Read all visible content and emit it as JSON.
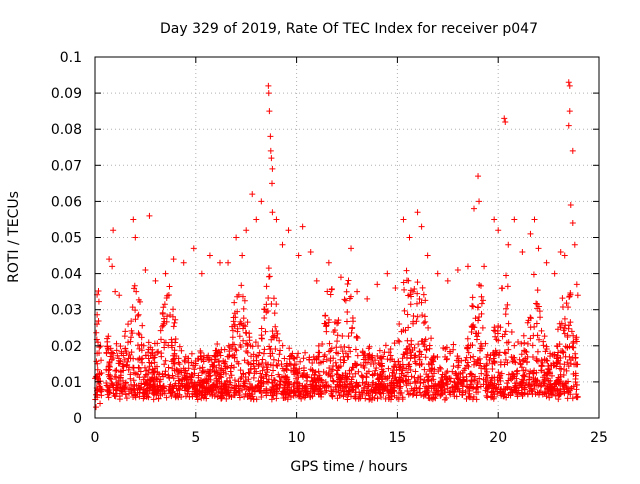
{
  "chart_data": {
    "type": "scatter",
    "title": "Day 329 of 2019, Rate Of TEC Index for receiver p047",
    "xlabel": "GPS time / hours",
    "ylabel": "ROTI / TECUs",
    "xlim": [
      0,
      25
    ],
    "ylim": [
      0,
      0.1
    ],
    "x_ticks": [
      0,
      5,
      10,
      15,
      20,
      25
    ],
    "y_ticks": [
      0,
      0.01,
      0.02,
      0.03,
      0.04,
      0.05,
      0.06,
      0.07,
      0.08,
      0.09,
      0.1
    ],
    "x_tick_labels": [
      "0",
      "5",
      "10",
      "15",
      "20",
      "25"
    ],
    "y_tick_labels": [
      "0",
      "0.01",
      "0.02",
      "0.03",
      "0.04",
      "0.05",
      "0.06",
      "0.07",
      "0.08",
      "0.09",
      "0.1"
    ],
    "grid": true,
    "marker": "+",
    "color": "#ff0000",
    "series": [
      {
        "name": "ROTI",
        "points": [
          [
            0.05,
            0.003
          ],
          [
            0.1,
            0.026
          ],
          [
            0.15,
            0.021
          ],
          [
            0.2,
            0.018
          ],
          [
            0.25,
            0.004
          ],
          [
            0.3,
            0.016
          ],
          [
            0.6,
            0.022
          ],
          [
            0.7,
            0.044
          ],
          [
            0.85,
            0.042
          ],
          [
            0.9,
            0.052
          ],
          [
            1.0,
            0.035
          ],
          [
            1.2,
            0.034
          ],
          [
            1.5,
            0.024
          ],
          [
            1.9,
            0.055
          ],
          [
            2.0,
            0.05
          ],
          [
            2.5,
            0.041
          ],
          [
            2.7,
            0.056
          ],
          [
            3.0,
            0.038
          ],
          [
            3.5,
            0.04
          ],
          [
            3.9,
            0.044
          ],
          [
            4.4,
            0.043
          ],
          [
            4.9,
            0.047
          ],
          [
            5.3,
            0.04
          ],
          [
            5.7,
            0.045
          ],
          [
            6.2,
            0.043
          ],
          [
            6.6,
            0.043
          ],
          [
            7.0,
            0.05
          ],
          [
            7.3,
            0.045
          ],
          [
            7.5,
            0.052
          ],
          [
            7.8,
            0.062
          ],
          [
            8.0,
            0.055
          ],
          [
            8.25,
            0.06
          ],
          [
            8.6,
            0.092
          ],
          [
            8.62,
            0.09
          ],
          [
            8.65,
            0.085
          ],
          [
            8.7,
            0.078
          ],
          [
            8.72,
            0.074
          ],
          [
            8.75,
            0.072
          ],
          [
            8.8,
            0.069
          ],
          [
            8.78,
            0.065
          ],
          [
            8.8,
            0.057
          ],
          [
            9.0,
            0.055
          ],
          [
            9.3,
            0.048
          ],
          [
            9.6,
            0.052
          ],
          [
            10.3,
            0.053
          ],
          [
            10.1,
            0.045
          ],
          [
            10.7,
            0.046
          ],
          [
            11.0,
            0.038
          ],
          [
            11.6,
            0.043
          ],
          [
            12.2,
            0.039
          ],
          [
            12.7,
            0.047
          ],
          [
            13.0,
            0.035
          ],
          [
            13.5,
            0.033
          ],
          [
            14.0,
            0.037
          ],
          [
            14.5,
            0.04
          ],
          [
            14.9,
            0.036
          ],
          [
            15.3,
            0.055
          ],
          [
            15.6,
            0.05
          ],
          [
            16.0,
            0.057
          ],
          [
            16.2,
            0.053
          ],
          [
            16.5,
            0.045
          ],
          [
            17.0,
            0.04
          ],
          [
            17.5,
            0.038
          ],
          [
            18.0,
            0.041
          ],
          [
            18.5,
            0.042
          ],
          [
            18.8,
            0.058
          ],
          [
            19.0,
            0.067
          ],
          [
            19.05,
            0.06
          ],
          [
            19.3,
            0.042
          ],
          [
            19.8,
            0.055
          ],
          [
            20.0,
            0.052
          ],
          [
            20.3,
            0.083
          ],
          [
            20.35,
            0.082
          ],
          [
            20.5,
            0.048
          ],
          [
            20.8,
            0.055
          ],
          [
            21.2,
            0.046
          ],
          [
            21.6,
            0.051
          ],
          [
            21.8,
            0.055
          ],
          [
            22.0,
            0.047
          ],
          [
            22.4,
            0.043
          ],
          [
            22.8,
            0.04
          ],
          [
            23.1,
            0.046
          ],
          [
            23.3,
            0.045
          ],
          [
            23.5,
            0.093
          ],
          [
            23.55,
            0.092
          ],
          [
            23.55,
            0.085
          ],
          [
            23.5,
            0.081
          ],
          [
            23.7,
            0.074
          ],
          [
            23.6,
            0.059
          ],
          [
            23.7,
            0.054
          ],
          [
            23.8,
            0.048
          ],
          [
            23.9,
            0.037
          ],
          [
            23.95,
            0.034
          ]
        ]
      }
    ]
  }
}
